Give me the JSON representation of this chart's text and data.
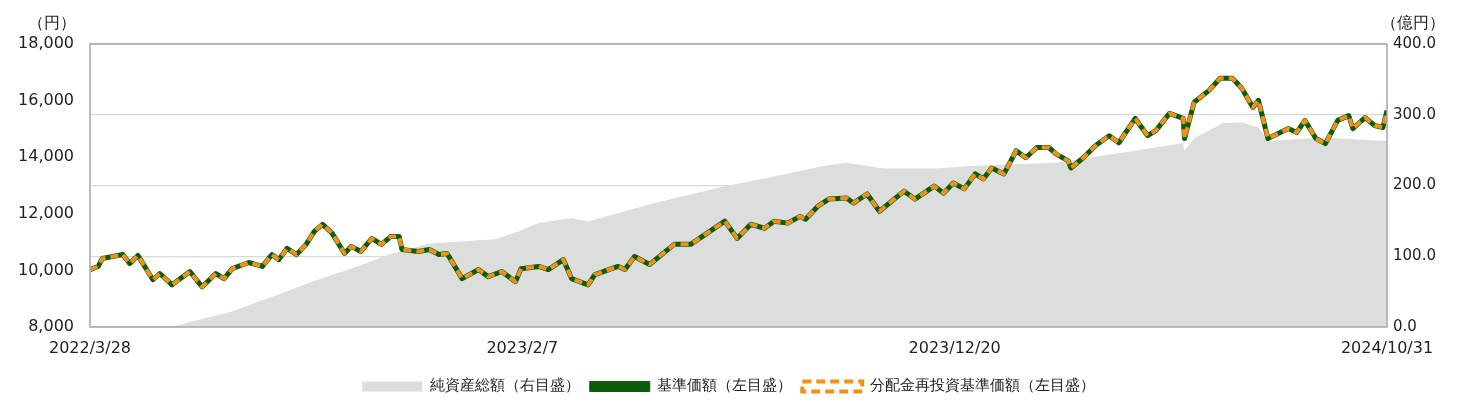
{
  "chart_data": {
    "type": "line",
    "ylabel": "（円）",
    "y2label": "（億円）",
    "x": [
      "2022-03-28",
      "2022-04-03",
      "2022-04-06",
      "2022-04-21",
      "2022-04-26",
      "2022-05-02",
      "2022-05-13",
      "2022-05-18",
      "2022-05-27",
      "2022-06-09",
      "2022-06-18",
      "2022-06-28",
      "2022-07-04",
      "2022-07-10",
      "2022-07-22",
      "2022-08-01",
      "2022-08-08",
      "2022-08-13",
      "2022-08-19",
      "2022-08-26",
      "2022-09-02",
      "2022-09-08",
      "2022-09-14",
      "2022-09-21",
      "2022-09-30",
      "2022-10-05",
      "2022-10-12",
      "2022-10-20",
      "2022-10-27",
      "2022-11-03",
      "2022-11-09",
      "2022-11-11",
      "2022-11-23",
      "2022-12-01",
      "2022-12-08",
      "2022-12-14",
      "2022-12-25",
      "2023-01-06",
      "2023-01-13",
      "2023-01-23",
      "2023-02-02",
      "2023-02-06",
      "2023-02-19",
      "2023-02-26",
      "2023-03-09",
      "2023-03-15",
      "2023-03-27",
      "2023-04-01",
      "2023-04-18",
      "2023-04-23",
      "2023-04-30",
      "2023-05-11",
      "2023-05-29",
      "2023-06-10",
      "2023-06-24",
      "2023-07-05",
      "2023-07-14",
      "2023-07-24",
      "2023-08-03",
      "2023-08-10",
      "2023-08-20",
      "2023-08-29",
      "2023-09-02",
      "2023-09-11",
      "2023-09-19",
      "2023-10-02",
      "2023-10-07",
      "2023-10-17",
      "2023-10-26",
      "2023-11-13",
      "2023-11-21",
      "2023-12-05",
      "2023-12-12",
      "2023-12-19",
      "2023-12-27",
      "2024-01-04",
      "2024-01-10",
      "2024-01-16",
      "2024-01-25",
      "2024-02-03",
      "2024-02-10",
      "2024-02-18",
      "2024-02-27",
      "2024-03-03",
      "2024-03-12",
      "2024-03-14",
      "2024-03-23",
      "2024-04-01",
      "2024-04-11",
      "2024-04-18",
      "2024-04-30",
      "2024-05-09",
      "2024-05-15",
      "2024-05-25",
      "2024-06-04",
      "2024-06-05",
      "2024-06-12",
      "2024-06-23",
      "2024-07-01",
      "2024-07-10",
      "2024-07-17",
      "2024-07-25",
      "2024-07-29",
      "2024-08-05",
      "2024-08-20",
      "2024-08-26",
      "2024-09-01",
      "2024-09-09",
      "2024-09-16",
      "2024-09-25",
      "2024-10-03",
      "2024-10-06",
      "2024-10-15",
      "2024-10-22",
      "2024-10-28",
      "2024-10-31"
    ],
    "series": [
      {
        "name": "純資産総額（右目盛）",
        "type": "area",
        "axis": "y2",
        "color": "#dcdddd",
        "x": [
          "2022-03-28",
          "2022-05-27",
          "2022-06-09",
          "2022-07-08",
          "2022-08-13",
          "2022-09-06",
          "2022-10-13",
          "2022-11-01",
          "2022-12-01",
          "2023-01-18",
          "2023-02-04",
          "2023-02-19",
          "2023-03-15",
          "2023-03-27",
          "2023-05-12",
          "2023-07-05",
          "2023-07-24",
          "2023-09-16",
          "2023-10-02",
          "2023-10-29",
          "2023-12-05",
          "2024-01-05",
          "2024-03-03",
          "2024-04-30",
          "2024-06-04",
          "2024-06-05",
          "2024-06-13",
          "2024-07-03",
          "2024-07-17",
          "2024-07-29",
          "2024-08-05",
          "2024-09-14",
          "2024-10-30",
          "2024-10-31"
        ],
        "values": [
          0,
          0,
          7,
          21,
          46,
          64,
          88,
          102,
          118,
          124,
          135,
          147,
          154,
          149,
          174,
          199,
          206,
          228,
          232,
          224,
          224,
          228,
          232,
          249,
          260,
          249,
          268,
          288,
          289,
          282,
          263,
          268,
          263,
          270
        ]
      },
      {
        "name": "基準価額（左目盛）",
        "type": "line",
        "color": "#0a5c0a",
        "line_style": "solid",
        "values": [
          10030,
          10140,
          10420,
          10560,
          10240,
          10530,
          9670,
          9890,
          9490,
          9960,
          9420,
          9890,
          9710,
          10060,
          10280,
          10140,
          10560,
          10380,
          10780,
          10560,
          10920,
          11380,
          11630,
          11310,
          10600,
          10850,
          10670,
          11130,
          10920,
          11200,
          11200,
          10740,
          10670,
          10740,
          10560,
          10600,
          9710,
          10030,
          9780,
          9960,
          9600,
          10060,
          10140,
          10030,
          10380,
          9710,
          9490,
          9850,
          10140,
          10030,
          10490,
          10210,
          10920,
          10920,
          11380,
          11740,
          11130,
          11630,
          11490,
          11740,
          11670,
          11910,
          11810,
          12270,
          12520,
          12560,
          12380,
          12700,
          12090,
          12800,
          12520,
          12980,
          12730,
          13090,
          12880,
          13410,
          13230,
          13620,
          13410,
          14230,
          13980,
          14340,
          14340,
          14120,
          13870,
          13620,
          13980,
          14410,
          14760,
          14510,
          15370,
          14760,
          14940,
          15550,
          15370,
          14660,
          15940,
          16360,
          16790,
          16790,
          16430,
          15760,
          16010,
          14660,
          15010,
          14870,
          15300,
          14660,
          14480,
          15300,
          15470,
          15010,
          15400,
          15120,
          15050,
          15650
        ]
      },
      {
        "name": "分配金再投資基準価額（左目盛）",
        "type": "line",
        "color": "#f0911e",
        "line_style": "dashed",
        "values": [
          10030,
          10140,
          10420,
          10560,
          10240,
          10530,
          9670,
          9890,
          9490,
          9960,
          9420,
          9890,
          9710,
          10060,
          10280,
          10140,
          10560,
          10380,
          10780,
          10560,
          10920,
          11380,
          11630,
          11310,
          10600,
          10850,
          10670,
          11130,
          10920,
          11200,
          11200,
          10740,
          10670,
          10740,
          10560,
          10600,
          9710,
          10030,
          9780,
          9960,
          9600,
          10060,
          10140,
          10030,
          10380,
          9710,
          9490,
          9850,
          10140,
          10030,
          10490,
          10210,
          10920,
          10920,
          11380,
          11740,
          11130,
          11630,
          11490,
          11740,
          11670,
          11910,
          11810,
          12270,
          12520,
          12560,
          12380,
          12700,
          12090,
          12800,
          12520,
          12980,
          12730,
          13090,
          12880,
          13410,
          13230,
          13620,
          13410,
          14230,
          13980,
          14340,
          14340,
          14120,
          13870,
          13620,
          13980,
          14410,
          14760,
          14510,
          15370,
          14760,
          14940,
          15550,
          15370,
          14660,
          15940,
          16360,
          16790,
          16790,
          16430,
          15760,
          16010,
          14660,
          15010,
          14870,
          15300,
          14660,
          14480,
          15300,
          15470,
          15010,
          15400,
          15120,
          15050,
          15650
        ]
      }
    ],
    "xlim": [
      "2022-03-28",
      "2024-10-31"
    ],
    "xticks": [
      {
        "value": "2022-03-28",
        "label": "2022/3/28"
      },
      {
        "value": "2023-02-07",
        "label": "2023/2/7"
      },
      {
        "value": "2023-12-20",
        "label": "2023/12/20"
      },
      {
        "value": "2024-10-31",
        "label": "2024/10/31"
      }
    ],
    "ylim": [
      8000,
      18000
    ],
    "yticks": [
      {
        "value": 8000,
        "label": "8,000"
      },
      {
        "value": 10000,
        "label": "10,000"
      },
      {
        "value": 12000,
        "label": "12,000"
      },
      {
        "value": 14000,
        "label": "14,000"
      },
      {
        "value": 16000,
        "label": "16,000"
      },
      {
        "value": 18000,
        "label": "18,000"
      }
    ],
    "y2lim": [
      0,
      400
    ],
    "y2ticks": [
      {
        "value": 0,
        "label": "0.0"
      },
      {
        "value": 100,
        "label": "100.0"
      },
      {
        "value": 200,
        "label": "200.0"
      },
      {
        "value": 300,
        "label": "300.0"
      },
      {
        "value": 400,
        "label": "400.0"
      }
    ],
    "grid": "y2",
    "legend": "bottom",
    "marker": "none"
  }
}
